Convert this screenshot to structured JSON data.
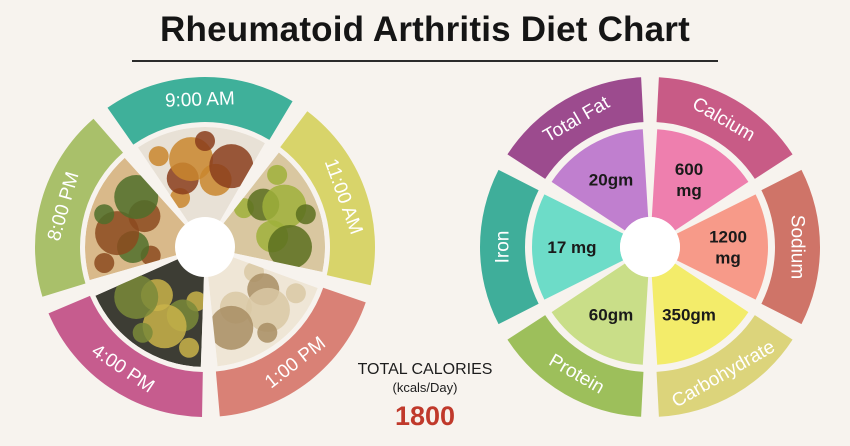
{
  "title": "Rheumatoid Arthritis Diet Chart",
  "meal_times": [
    {
      "label": "9:00 AM",
      "color": "#3fb09a"
    },
    {
      "label": "11:00 AM",
      "color": "#d8d46a"
    },
    {
      "label": "1:00 PM",
      "color": "#d98176"
    },
    {
      "label": "4:00 PM",
      "color": "#c65c8e"
    },
    {
      "label": "8:00 PM",
      "color": "#a9c06a"
    }
  ],
  "meal_images": [
    {
      "name": "idli-sambar-image"
    },
    {
      "name": "pears-image"
    },
    {
      "name": "brown-rice-image"
    },
    {
      "name": "green-tea-image"
    },
    {
      "name": "roti-vegetable-image"
    }
  ],
  "total_calories": {
    "label": "TOTAL CALORIES",
    "unit": "(kcals/Day)",
    "value": "1800",
    "value_color": "#c0392b"
  },
  "nutrients": [
    {
      "label": "Total Fat",
      "value": "20gm",
      "ring_color": "#9c4b8e",
      "inner_color": "#c07fcf"
    },
    {
      "label": "Calcium",
      "value": "600\nmg",
      "ring_color": "#c85b86",
      "inner_color": "#ee7fae"
    },
    {
      "label": "Sodium",
      "value": "1200\nmg",
      "ring_color": "#cf7468",
      "inner_color": "#f79a89"
    },
    {
      "label": "Carbohydrate",
      "value": "350gm",
      "ring_color": "#dcd47b",
      "inner_color": "#f3ec6a"
    },
    {
      "label": "Protein",
      "value": "60gm",
      "ring_color": "#9dbf5b",
      "inner_color": "#c9de88"
    },
    {
      "label": "Iron",
      "value": "17 mg",
      "ring_color": "#3fae9a",
      "inner_color": "#6ddcc8"
    }
  ]
}
